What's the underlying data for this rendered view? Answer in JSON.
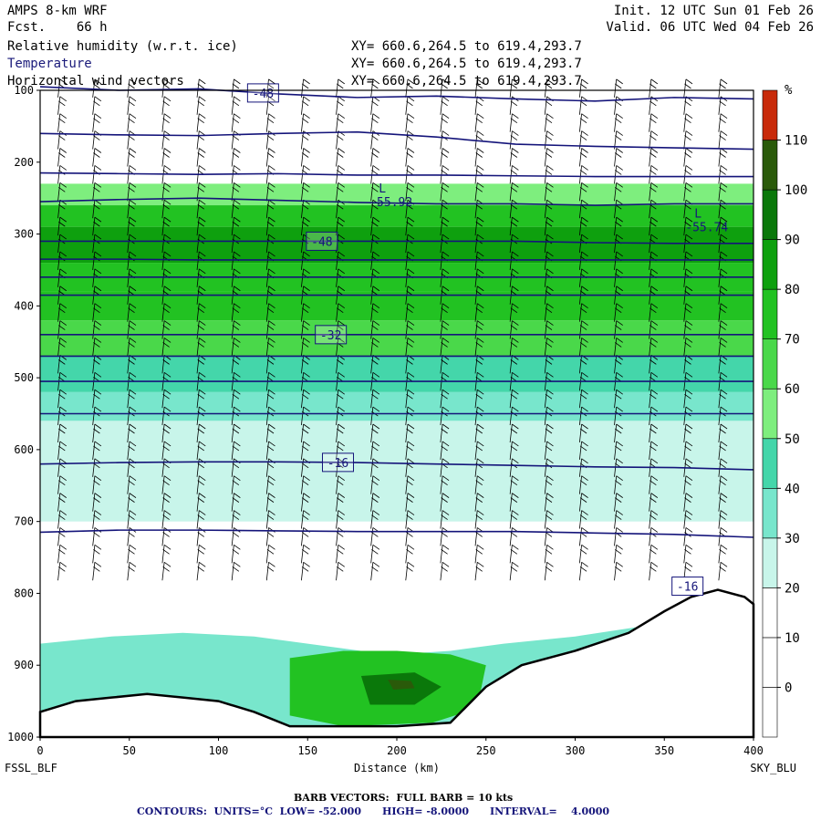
{
  "header": {
    "model": "AMPS 8-km WRF",
    "fcst": "Fcst.    66 h",
    "init": "Init. 12 UTC Sun 01 Feb 26",
    "valid": "Valid. 06 UTC Wed 04 Feb 26",
    "field1": "Relative humidity (w.r.t. ice)",
    "field2": "Temperature",
    "field3": "Horizontal wind vectors",
    "xy1": "XY= 660.6,264.5 to 619.4,293.7",
    "xy2": "XY= 660.6,264.5 to 619.4,293.7",
    "xy3": "XY= 660.6,264.5 to 619.4,293.7"
  },
  "footer": {
    "barb": "BARB VECTORS:  FULL BARB = 10 kts",
    "contours": "CONTOURS:  UNITS=°C  LOW= -52.000      HIGH= -8.0000      INTERVAL=    4.0000"
  },
  "colors": {
    "contour": "#14147a",
    "terrain": "#000000",
    "barb": "#000000"
  },
  "chart_data": {
    "type": "heatmap",
    "title": "Relative humidity (w.r.t. ice)",
    "xlabel": "Distance (km)",
    "ylabel": "",
    "x_ticks": [
      "0",
      "50",
      "100",
      "150",
      "200",
      "250",
      "300",
      "350",
      "400"
    ],
    "y_ticks": [
      "100",
      "200",
      "300",
      "400",
      "500",
      "600",
      "700",
      "800",
      "900",
      "1000"
    ],
    "xlim": [
      0,
      400
    ],
    "ylim": [
      1000,
      100
    ],
    "left_endpoint": "FSSL_BLF",
    "right_endpoint": "SKY_BLU",
    "colorbar": {
      "unit": "%",
      "labels": [
        "0",
        "10",
        "20",
        "30",
        "40",
        "50",
        "60",
        "70",
        "80",
        "90",
        "100",
        "110"
      ],
      "colors": [
        "#ffffff",
        "#ffffff",
        "#ffffff",
        "#c8f5ea",
        "#78e6cc",
        "#44d6aa",
        "#7eee7e",
        "#4ad84a",
        "#22c222",
        "#0ea00e",
        "#0a780a",
        "#2a5a0a",
        "#c82a0a"
      ]
    },
    "rh_layers": [
      {
        "p_top": 230,
        "p_bot": 260,
        "rh": 65
      },
      {
        "p_top": 260,
        "p_bot": 290,
        "rh": 85
      },
      {
        "p_top": 290,
        "p_bot": 340,
        "rh": 95
      },
      {
        "p_top": 340,
        "p_bot": 380,
        "rh": 80
      },
      {
        "p_top": 380,
        "p_bot": 420,
        "rh": 88
      },
      {
        "p_top": 420,
        "p_bot": 470,
        "rh": 75
      },
      {
        "p_top": 470,
        "p_bot": 520,
        "rh": 55
      },
      {
        "p_top": 520,
        "p_bot": 560,
        "rh": 45
      },
      {
        "p_top": 560,
        "p_bot": 620,
        "rh": 38
      },
      {
        "p_top": 620,
        "p_bot": 700,
        "rh": 32
      }
    ],
    "temperature_contours": [
      {
        "label": "-48",
        "label_x": 125,
        "pressure": [
          95,
          100,
          98,
          105,
          110,
          108,
          112,
          115,
          110,
          112
        ]
      },
      {
        "label": "",
        "pressure": [
          160,
          162,
          163,
          160,
          158,
          165,
          175,
          178,
          180,
          182
        ]
      },
      {
        "label": "",
        "pressure": [
          215,
          216,
          217,
          216,
          218,
          218,
          219,
          220,
          220,
          220
        ]
      },
      {
        "label": "",
        "pressure": [
          255,
          252,
          250,
          253,
          256,
          258,
          258,
          260,
          258,
          258
        ]
      },
      {
        "label": "-48",
        "label_x": 158,
        "pressure": [
          310,
          310,
          310,
          310,
          310,
          310,
          310,
          312,
          313,
          313
        ]
      },
      {
        "label": "",
        "pressure": [
          335,
          335,
          336,
          336,
          336,
          336,
          336,
          336,
          336,
          336
        ]
      },
      {
        "label": "",
        "pressure": [
          360,
          360,
          360,
          360,
          360,
          360,
          360,
          360,
          360,
          360
        ]
      },
      {
        "label": "",
        "pressure": [
          385,
          385,
          385,
          385,
          385,
          385,
          385,
          385,
          385,
          385
        ]
      },
      {
        "label": "-32",
        "label_x": 163,
        "pressure": [
          440,
          440,
          440,
          440,
          440,
          440,
          440,
          440,
          440,
          440
        ]
      },
      {
        "label": "",
        "pressure": [
          470,
          470,
          470,
          470,
          470,
          470,
          470,
          470,
          470,
          470
        ]
      },
      {
        "label": "",
        "pressure": [
          505,
          505,
          505,
          505,
          505,
          505,
          505,
          505,
          505,
          505
        ]
      },
      {
        "label": "",
        "pressure": [
          550,
          550,
          550,
          550,
          550,
          550,
          550,
          550,
          550,
          550
        ]
      },
      {
        "label": "-16",
        "label_x": 167,
        "pressure": [
          620,
          618,
          617,
          617,
          618,
          620,
          622,
          624,
          625,
          628
        ]
      },
      {
        "label": "",
        "pressure": [
          715,
          712,
          712,
          713,
          714,
          714,
          714,
          716,
          718,
          722
        ]
      }
    ],
    "low_markers": [
      {
        "x": 195,
        "p": 265,
        "label": "-55.92"
      },
      {
        "x": 372,
        "p": 300,
        "label": "-55.74"
      }
    ],
    "terrain_label": {
      "x": 363,
      "p": 790,
      "label": "-16"
    }
  }
}
